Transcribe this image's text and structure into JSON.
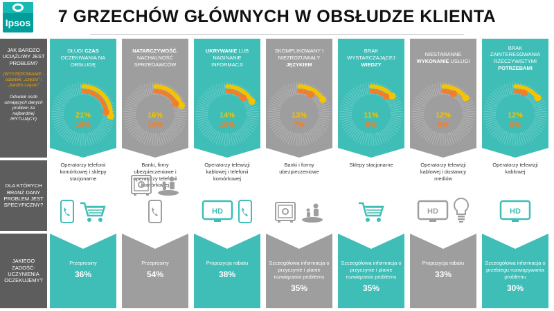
{
  "brand": {
    "logo_text": "Ipsos"
  },
  "title": "7 GRZECHÓW GŁÓWNYCH W OBSŁUDZE KLIENTA",
  "row_labels": {
    "question1": "JAK BARDZO UCIĄŻLIWY JEST PROBLEM?",
    "legend_occurrence": "(WYSTĘPOWANIE - odsetek: „często” i „bardzo często”",
    "legend_irritating": "Odsetek osób uznających danych problem za najbardziej IRYTUJĄCY)",
    "question2": "DLA KTÓRYCH BRANŻ DANY PROBLEM JEST SPECYFICZNY?",
    "question3": "JAKIEGO ZADOŚĆ-UCZYNIENIA OCZEKUJEMY?"
  },
  "colors": {
    "teal": "#3fbdb7",
    "gray": "#9e9e9e",
    "yellow": "#f5c400",
    "orange": "#f07e2d",
    "dark": "#5d5d5d"
  },
  "columns": [
    {
      "theme": "teal",
      "head_pre": "DŁUGI ",
      "head_kw": "CZAS",
      "head_post": " OCZEKIWANIA NA OBSŁUGĘ",
      "occurrence": "21%",
      "irritating": "19%",
      "occ_val": 21,
      "irr_val": 19,
      "industries": "Operatorzy telefonii komórkowej i sklepy stacjonarne",
      "icons": [
        "phone-icon",
        "cart-icon"
      ],
      "expectation": "Przeprosiny",
      "expect_pct": "36%"
    },
    {
      "theme": "gray",
      "head_pre": "",
      "head_kw": "NATARCZYWOŚĆ",
      "head_post": ", NACHALNOŚĆ SPRZEDAWCÓW",
      "occurrence": "16%",
      "irritating": "14%",
      "occ_val": 16,
      "irr_val": 14,
      "industries": "Banki, firmy ubezpieczeniowe i operatorzy telefonii komórkowej",
      "icons": [
        "safe-icon",
        "people-money-icon",
        "phone-icon"
      ],
      "expectation": "Przeprosiny",
      "expect_pct": "54%"
    },
    {
      "theme": "teal",
      "head_pre": "",
      "head_kw": "UKRYWANIE",
      "head_post": " LUB NAGINANIE INFORMACJI",
      "occurrence": "14%",
      "irritating": "10%",
      "occ_val": 14,
      "irr_val": 10,
      "industries": "Operatorzy telewizji kablowej i telefonii komórkowej",
      "icons": [
        "tv-hd-icon",
        "phone-icon"
      ],
      "expectation": "Propozycja rabatu",
      "expect_pct": "38%"
    },
    {
      "theme": "gray",
      "head_pre": "SKOMPLIKOWANY I NIEZROZUMIAŁY ",
      "head_kw": "JĘZYKIEM",
      "head_post": "",
      "occurrence": "13%",
      "irritating": "7%",
      "occ_val": 13,
      "irr_val": 7,
      "industries": "Banki i formy ubezpieczeniowe",
      "icons": [
        "safe-icon",
        "people-money-icon"
      ],
      "expectation": "Szczegółowa informacja o przyczynie i planie rozwiązania problemu",
      "expect_pct": "35%"
    },
    {
      "theme": "teal",
      "head_pre": "BRAK WYSTARCZAJĄCEJ ",
      "head_kw": "WIEDZY",
      "head_post": "",
      "occurrence": "11%",
      "irritating": "9%",
      "occ_val": 11,
      "irr_val": 9,
      "industries": "Sklepy stacjonarne",
      "icons": [
        "cart-icon"
      ],
      "expectation": "Szczegółowa informacja o przyczynie i planie rozwiązania problemu",
      "expect_pct": "35%"
    },
    {
      "theme": "gray",
      "head_pre": "NIESTARANNE ",
      "head_kw": "WYKONANIE",
      "head_post": " USŁUGI",
      "occurrence": "12%",
      "irritating": "6%",
      "occ_val": 12,
      "irr_val": 6,
      "industries": "Operatorzy telewizji kablowej i dostawcy mediów",
      "icons": [
        "tv-hd-icon",
        "lightbulb-icon"
      ],
      "expectation": "Propozycja rabatu",
      "expect_pct": "33%"
    },
    {
      "theme": "teal",
      "head_pre": "BRAK ZAINTERESOWANIA RZECZYWISTYMI ",
      "head_kw": "POTRZEBAMI",
      "head_post": "",
      "occurrence": "12%",
      "irritating": "5%",
      "occ_val": 12,
      "irr_val": 5,
      "industries": "Operatorzy telewizji kablowej",
      "icons": [
        "tv-hd-icon"
      ],
      "expectation": "Szczegółowa informacja o przebiegu rozwiązywania problemu",
      "expect_pct": "30%"
    }
  ]
}
